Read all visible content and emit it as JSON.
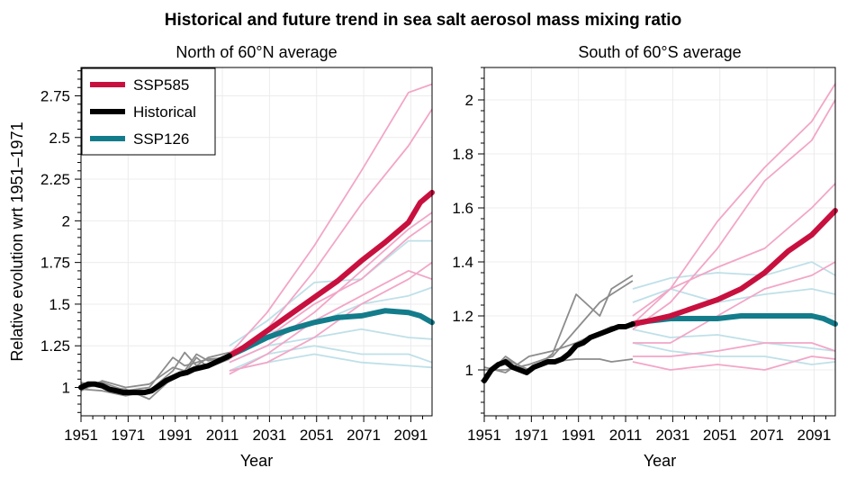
{
  "figure": {
    "title": "Historical and future trend in sea salt aerosol mass mixing ratio"
  },
  "chart_data": [
    {
      "type": "line",
      "subtitle": "North of 60°N average",
      "xlabel": "Year",
      "ylabel": "Relative evolution wrt 1951–1971",
      "xlim": [
        1951,
        2100
      ],
      "ylim": [
        0.83,
        2.92
      ],
      "xticks": [
        "1951",
        "1971",
        "1991",
        "2011",
        "2031",
        "2051",
        "2071",
        "2091"
      ],
      "yticks": [
        "1",
        "1.25",
        "1.5",
        "1.75",
        "2",
        "2.25",
        "2.5",
        "2.75"
      ],
      "grid": true,
      "legend": {
        "position": "top-left",
        "entries": [
          "SSP585",
          "Historical",
          "SSP126"
        ]
      },
      "colors": {
        "SSP585": "#c8103e",
        "Historical": "#000000",
        "SSP126": "#137c8b",
        "ssp585_member": "#f2a6c7",
        "historical_member": "#8c8c8c",
        "ssp126_member": "#bfe0e8"
      },
      "series": [
        {
          "name": "Historical",
          "role": "mean",
          "x": [
            1951,
            1954,
            1957,
            1960,
            1963,
            1966,
            1969,
            1972,
            1975,
            1978,
            1981,
            1984,
            1987,
            1990,
            1993,
            1996,
            1999,
            2002,
            2005,
            2008,
            2011,
            2014
          ],
          "y": [
            1.0,
            1.02,
            1.02,
            1.01,
            0.99,
            0.98,
            0.97,
            0.97,
            0.97,
            0.97,
            0.98,
            1.01,
            1.04,
            1.06,
            1.08,
            1.09,
            1.11,
            1.12,
            1.13,
            1.15,
            1.17,
            1.19
          ]
        },
        {
          "name": "SSP585",
          "role": "mean",
          "x": [
            2014,
            2020,
            2030,
            2040,
            2050,
            2060,
            2070,
            2080,
            2090,
            2095,
            2100
          ],
          "y": [
            1.19,
            1.24,
            1.34,
            1.44,
            1.54,
            1.64,
            1.76,
            1.87,
            1.99,
            2.11,
            2.17
          ]
        },
        {
          "name": "SSP126",
          "role": "mean",
          "x": [
            2014,
            2020,
            2030,
            2040,
            2050,
            2060,
            2070,
            2080,
            2090,
            2095,
            2100
          ],
          "y": [
            1.19,
            1.23,
            1.3,
            1.35,
            1.39,
            1.42,
            1.43,
            1.46,
            1.45,
            1.43,
            1.39
          ]
        },
        {
          "role": "historical_member",
          "x": [
            1951,
            1960,
            1970,
            1980,
            1990,
            1995,
            2000,
            2005,
            2014
          ],
          "y": [
            1.02,
            1.03,
            0.98,
            1.0,
            1.18,
            1.13,
            1.15,
            1.17,
            1.18
          ]
        },
        {
          "role": "historical_member",
          "x": [
            1951,
            1960,
            1970,
            1980,
            1990,
            1995,
            2000,
            2005,
            2014
          ],
          "y": [
            0.99,
            0.98,
            0.95,
            0.98,
            1.1,
            1.21,
            1.13,
            1.18,
            1.21
          ]
        },
        {
          "role": "historical_member",
          "x": [
            1951,
            1960,
            1970,
            1980,
            1990,
            1995,
            2000,
            2005,
            2014
          ],
          "y": [
            1.03,
            1.0,
            0.99,
            0.93,
            1.06,
            1.08,
            1.18,
            1.12,
            1.17
          ]
        },
        {
          "role": "historical_member",
          "x": [
            1951,
            1960,
            1970,
            1980,
            1990,
            1995,
            2000,
            2005,
            2014
          ],
          "y": [
            0.98,
            1.04,
            1.0,
            1.02,
            1.12,
            1.1,
            1.2,
            1.16,
            1.19
          ]
        },
        {
          "role": "ssp585_member",
          "x": [
            2014,
            2030,
            2050,
            2070,
            2090,
            2100
          ],
          "y": [
            1.2,
            1.45,
            1.85,
            2.3,
            2.77,
            2.82
          ]
        },
        {
          "role": "ssp585_member",
          "x": [
            2014,
            2030,
            2050,
            2070,
            2090,
            2100
          ],
          "y": [
            1.17,
            1.35,
            1.7,
            2.1,
            2.45,
            2.67
          ]
        },
        {
          "role": "ssp585_member",
          "x": [
            2014,
            2030,
            2050,
            2070,
            2090,
            2100
          ],
          "y": [
            1.15,
            1.25,
            1.45,
            1.7,
            1.95,
            2.05
          ]
        },
        {
          "role": "ssp585_member",
          "x": [
            2014,
            2030,
            2050,
            2070,
            2090,
            2100
          ],
          "y": [
            1.21,
            1.3,
            1.5,
            1.65,
            1.9,
            2.0
          ]
        },
        {
          "role": "ssp585_member",
          "x": [
            2014,
            2030,
            2050,
            2070,
            2090,
            2100
          ],
          "y": [
            1.1,
            1.15,
            1.3,
            1.5,
            1.65,
            1.75
          ]
        },
        {
          "role": "ssp585_member",
          "x": [
            2014,
            2030,
            2050,
            2070,
            2090,
            2100
          ],
          "y": [
            1.08,
            1.2,
            1.4,
            1.55,
            1.7,
            1.65
          ]
        },
        {
          "role": "ssp126_member",
          "x": [
            2014,
            2030,
            2050,
            2070,
            2090,
            2100
          ],
          "y": [
            1.25,
            1.4,
            1.63,
            1.65,
            1.88,
            1.88
          ]
        },
        {
          "role": "ssp126_member",
          "x": [
            2014,
            2030,
            2050,
            2070,
            2090,
            2100
          ],
          "y": [
            1.2,
            1.33,
            1.38,
            1.5,
            1.55,
            1.6
          ]
        },
        {
          "role": "ssp126_member",
          "x": [
            2014,
            2030,
            2050,
            2070,
            2090,
            2100
          ],
          "y": [
            1.15,
            1.25,
            1.3,
            1.35,
            1.3,
            1.29
          ]
        },
        {
          "role": "ssp126_member",
          "x": [
            2014,
            2030,
            2050,
            2070,
            2090,
            2100
          ],
          "y": [
            1.1,
            1.2,
            1.25,
            1.2,
            1.2,
            1.15
          ]
        },
        {
          "role": "ssp126_member",
          "x": [
            2014,
            2030,
            2050,
            2070,
            2090,
            2100
          ],
          "y": [
            1.1,
            1.15,
            1.2,
            1.15,
            1.13,
            1.12
          ]
        }
      ]
    },
    {
      "type": "line",
      "subtitle": "South of 60°S average",
      "xlabel": "Year",
      "ylabel": "",
      "xlim": [
        1951,
        2100
      ],
      "ylim": [
        0.83,
        2.12
      ],
      "xticks": [
        "1951",
        "1971",
        "1991",
        "2011",
        "2031",
        "2051",
        "2071",
        "2091"
      ],
      "yticks": [
        "1",
        "1.2",
        "1.4",
        "1.6",
        "1.8",
        "2"
      ],
      "grid": true,
      "colors": {
        "SSP585": "#c8103e",
        "Historical": "#000000",
        "SSP126": "#137c8b",
        "ssp585_member": "#f2a6c7",
        "historical_member": "#8c8c8c",
        "ssp126_member": "#bfe0e8"
      },
      "series": [
        {
          "name": "Historical",
          "role": "mean",
          "x": [
            1951,
            1954,
            1957,
            1960,
            1963,
            1966,
            1969,
            1972,
            1975,
            1978,
            1981,
            1984,
            1987,
            1990,
            1993,
            1996,
            1999,
            2002,
            2005,
            2008,
            2011,
            2014
          ],
          "y": [
            0.96,
            1.0,
            1.02,
            1.03,
            1.01,
            1.0,
            0.99,
            1.01,
            1.02,
            1.03,
            1.03,
            1.04,
            1.06,
            1.09,
            1.1,
            1.12,
            1.13,
            1.14,
            1.15,
            1.16,
            1.16,
            1.17
          ]
        },
        {
          "name": "SSP585",
          "role": "mean",
          "x": [
            2014,
            2020,
            2030,
            2040,
            2050,
            2060,
            2070,
            2080,
            2090,
            2100
          ],
          "y": [
            1.17,
            1.18,
            1.2,
            1.23,
            1.26,
            1.3,
            1.36,
            1.44,
            1.5,
            1.59
          ]
        },
        {
          "name": "SSP126",
          "role": "mean",
          "x": [
            2014,
            2020,
            2030,
            2040,
            2050,
            2060,
            2070,
            2080,
            2090,
            2095,
            2100
          ],
          "y": [
            1.17,
            1.18,
            1.19,
            1.19,
            1.19,
            1.2,
            1.2,
            1.2,
            1.2,
            1.19,
            1.17
          ]
        },
        {
          "role": "historical_member",
          "x": [
            1951,
            1960,
            1970,
            1980,
            1990,
            2000,
            2005,
            2014
          ],
          "y": [
            0.97,
            1.05,
            0.99,
            1.06,
            1.28,
            1.2,
            1.3,
            1.35
          ]
        },
        {
          "role": "historical_member",
          "x": [
            1951,
            1960,
            1970,
            1980,
            1990,
            2000,
            2005,
            2014
          ],
          "y": [
            1.0,
            1.0,
            1.02,
            1.05,
            1.15,
            1.25,
            1.28,
            1.33
          ]
        },
        {
          "role": "historical_member",
          "x": [
            1951,
            1960,
            1970,
            1980,
            1990,
            2000,
            2005,
            2014
          ],
          "y": [
            0.98,
            1.04,
            1.0,
            1.03,
            1.04,
            1.04,
            1.03,
            1.04
          ]
        },
        {
          "role": "historical_member",
          "x": [
            1951,
            1960,
            1970,
            1980,
            1990,
            2000,
            2005,
            2014
          ],
          "y": [
            1.01,
            0.99,
            1.05,
            1.07,
            1.1,
            1.14,
            1.16,
            1.16
          ]
        },
        {
          "role": "ssp585_member",
          "x": [
            2014,
            2030,
            2050,
            2070,
            2090,
            2100
          ],
          "y": [
            1.17,
            1.3,
            1.55,
            1.75,
            1.92,
            2.06
          ]
        },
        {
          "role": "ssp585_member",
          "x": [
            2014,
            2030,
            2050,
            2070,
            2090,
            2100
          ],
          "y": [
            1.15,
            1.25,
            1.45,
            1.7,
            1.85,
            2.0
          ]
        },
        {
          "role": "ssp585_member",
          "x": [
            2014,
            2030,
            2050,
            2070,
            2090,
            2100
          ],
          "y": [
            1.2,
            1.3,
            1.38,
            1.45,
            1.6,
            1.69
          ]
        },
        {
          "role": "ssp585_member",
          "x": [
            2014,
            2030,
            2050,
            2070,
            2090,
            2100
          ],
          "y": [
            1.1,
            1.1,
            1.2,
            1.3,
            1.35,
            1.4
          ]
        },
        {
          "role": "ssp585_member",
          "x": [
            2014,
            2030,
            2050,
            2070,
            2090,
            2100
          ],
          "y": [
            1.05,
            1.05,
            1.07,
            1.1,
            1.1,
            1.07
          ]
        },
        {
          "role": "ssp585_member",
          "x": [
            2014,
            2030,
            2050,
            2070,
            2090,
            2100
          ],
          "y": [
            1.03,
            1.0,
            1.02,
            1.0,
            1.05,
            1.04
          ]
        },
        {
          "role": "ssp126_member",
          "x": [
            2014,
            2030,
            2050,
            2070,
            2090,
            2100
          ],
          "y": [
            1.3,
            1.34,
            1.36,
            1.35,
            1.4,
            1.35
          ]
        },
        {
          "role": "ssp126_member",
          "x": [
            2014,
            2030,
            2050,
            2070,
            2090,
            2100
          ],
          "y": [
            1.25,
            1.3,
            1.25,
            1.28,
            1.3,
            1.28
          ]
        },
        {
          "role": "ssp126_member",
          "x": [
            2014,
            2030,
            2050,
            2070,
            2090,
            2100
          ],
          "y": [
            1.15,
            1.12,
            1.13,
            1.1,
            1.08,
            1.07
          ]
        },
        {
          "role": "ssp126_member",
          "x": [
            2014,
            2030,
            2050,
            2070,
            2090,
            2100
          ],
          "y": [
            1.1,
            1.07,
            1.05,
            1.05,
            1.02,
            1.03
          ]
        }
      ]
    }
  ]
}
